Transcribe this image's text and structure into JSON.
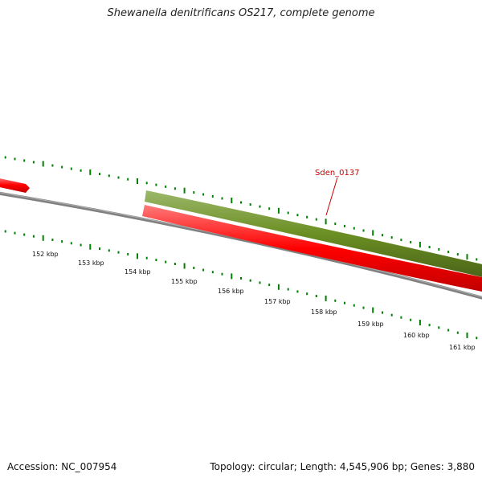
{
  "title": "Shewanella denitrificans OS217, complete genome",
  "accession": "Accession: NC_007954",
  "stats": "Topology: circular; Length: 4,545,906 bp; Genes: 3,880",
  "kbp_labels": [
    "152 kbp",
    "153 kbp",
    "154 kbp",
    "155 kbp",
    "156 kbp",
    "157 kbp",
    "158 kbp",
    "159 kbp",
    "160 kbp",
    "161 kbp"
  ],
  "gene_label": "Sden_0137",
  "colors": {
    "forward_gene": "#6b8e23",
    "reverse_gene": "#ff0000",
    "backbone": "#808080",
    "ticks": "#008000",
    "gene_label": "#cc0000"
  }
}
